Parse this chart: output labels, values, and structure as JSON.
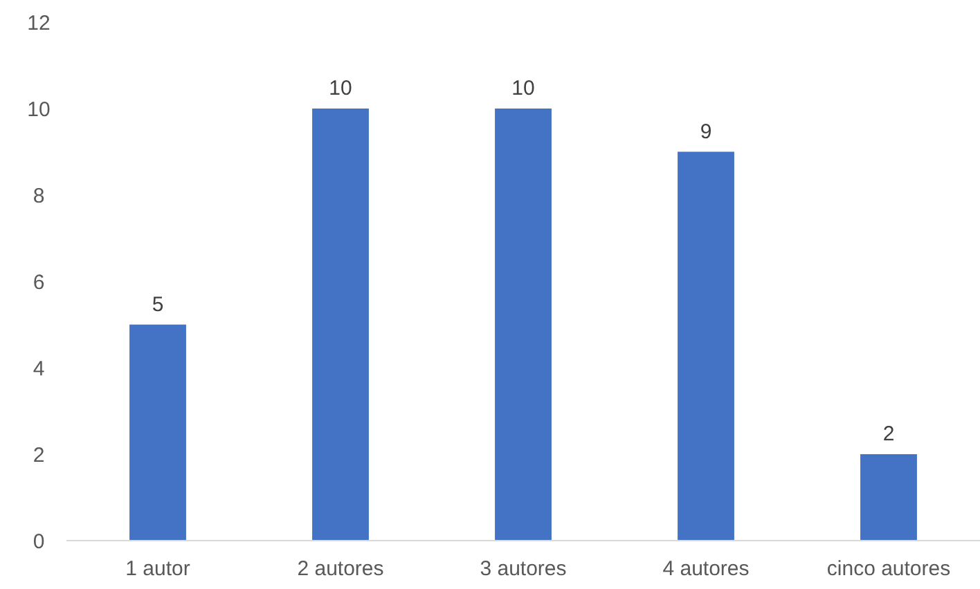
{
  "chart_data": {
    "type": "bar",
    "categories": [
      "1 autor",
      "2 autores",
      "3 autores",
      "4 autores",
      "cinco autores"
    ],
    "values": [
      5,
      10,
      10,
      9,
      2
    ],
    "color": "#4472c4",
    "ylim": [
      0,
      12
    ],
    "yticks": [
      0,
      2,
      4,
      6,
      8,
      10,
      12
    ],
    "grid": false,
    "data_labels": true
  }
}
